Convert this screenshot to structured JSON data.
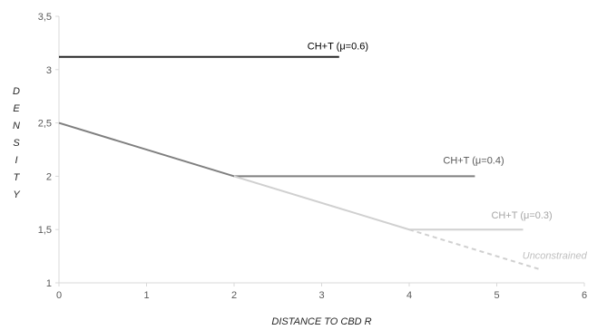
{
  "chart_data": {
    "type": "line",
    "xlabel": "DISTANCE TO CBD R",
    "ylabel": "DENSITY",
    "xlim": [
      0,
      6
    ],
    "ylim": [
      1,
      3.5
    ],
    "x_ticks": [
      "0",
      "1",
      "2",
      "3",
      "4",
      "5",
      "6"
    ],
    "y_ticks": [
      "1",
      "1,5",
      "2",
      "2,5",
      "3",
      "3,5"
    ],
    "grid": false,
    "series": [
      {
        "name": "CH+T (μ=0.6)",
        "color": "#262626",
        "style": "solid",
        "points": [
          [
            0,
            3.12
          ],
          [
            3.2,
            3.12
          ]
        ]
      },
      {
        "name": "CH+T (μ=0.4)",
        "color": "#7f7f7f",
        "style": "solid",
        "points": [
          [
            0,
            2.5
          ],
          [
            2,
            2.0
          ],
          [
            4.75,
            2.0
          ]
        ]
      },
      {
        "name": "CH+T (μ=0.3)",
        "color": "#d0d0d0",
        "style": "solid",
        "points": [
          [
            2,
            2.0
          ],
          [
            4,
            1.5
          ],
          [
            5.3,
            1.5
          ]
        ]
      },
      {
        "name": "Unconstrained",
        "color": "#d0d0d0",
        "style": "dashed",
        "points": [
          [
            4,
            1.5
          ],
          [
            5.5,
            1.125
          ]
        ]
      }
    ],
    "annotations": [
      {
        "text": "CH+T (μ=0.6)",
        "x": 3.2,
        "y": 3.12,
        "color": "#000000"
      },
      {
        "text": "CH+T (μ=0.4)",
        "x": 4.75,
        "y": 2.0,
        "color": "#595959"
      },
      {
        "text": "CH+T (μ=0.3)",
        "x": 5.3,
        "y": 1.5,
        "color": "#a6a6a6"
      },
      {
        "text": "Unconstrained",
        "x": 5.5,
        "y": 1.125,
        "color": "#bfbfbf",
        "italic": true
      }
    ]
  }
}
